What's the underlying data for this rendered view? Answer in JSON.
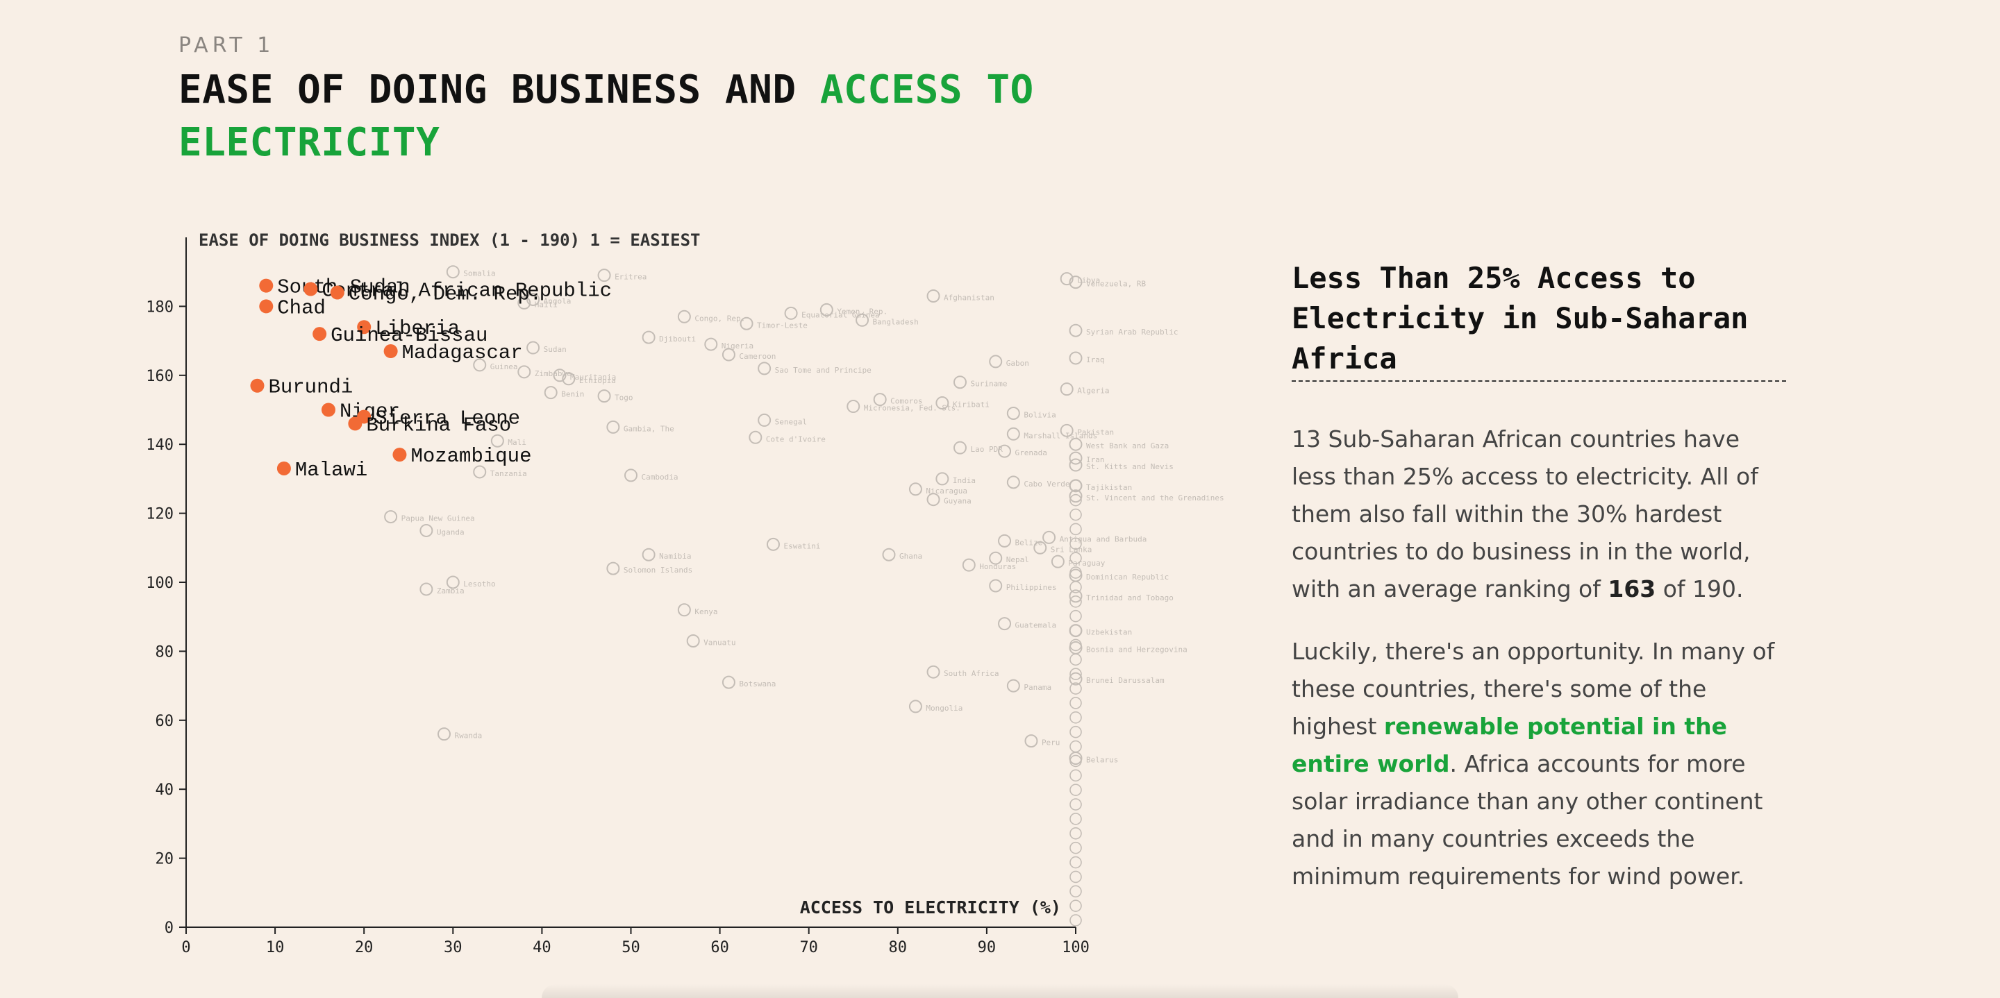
{
  "header": {
    "eyebrow": "PART 1",
    "title_part1": "EASE OF DOING BUSINESS AND ",
    "title_accent": "ACCESS TO ELECTRICITY"
  },
  "colors": {
    "background": "#f8efe6",
    "accent_green": "#18a33a",
    "highlight_orange": "#f26a35",
    "muted_point": "#c4bdb6"
  },
  "aside": {
    "title": "Less Than 25% Access to Electricity in Sub-Saharan Africa",
    "p1_before": "13 Sub-Saharan African countries have less than 25% access to electricity. All of them also fall within the 30% hardest countries to do business in in the world, with an average ranking of ",
    "p1_bold": "163",
    "p1_after": " of 190.",
    "p2_before": "Luckily, there's an opportunity. In many of these countries, there's some of the highest ",
    "p2_green": "renewable potential in the entire world",
    "p2_after": ". Africa accounts for more solar irradiance than any other continent and in many countries exceeds the minimum requirements for wind power."
  },
  "chart_data": {
    "type": "scatter",
    "ylabel": "EASE OF DOING BUSINESS INDEX (1 - 190) 1 = EASIEST",
    "xlabel": "ACCESS TO ELECTRICITY (%)",
    "xlim": [
      0,
      100
    ],
    "ylim": [
      0,
      190
    ],
    "x_ticks": [
      0,
      10,
      20,
      30,
      40,
      50,
      60,
      70,
      80,
      90,
      100
    ],
    "y_ticks": [
      0,
      20,
      40,
      60,
      80,
      100,
      120,
      140,
      160,
      180
    ],
    "highlighted": [
      {
        "name": "South Sudan",
        "x": 9,
        "y": 186
      },
      {
        "name": "Central African Republic",
        "x": 14,
        "y": 185
      },
      {
        "name": "Congo, Dem. Rep.",
        "x": 17,
        "y": 184
      },
      {
        "name": "Chad",
        "x": 9,
        "y": 180
      },
      {
        "name": "Liberia",
        "x": 20,
        "y": 174
      },
      {
        "name": "Guinea-Bissau",
        "x": 15,
        "y": 172
      },
      {
        "name": "Madagascar",
        "x": 23,
        "y": 167
      },
      {
        "name": "Burundi",
        "x": 8,
        "y": 157
      },
      {
        "name": "Niger",
        "x": 16,
        "y": 150
      },
      {
        "name": "Sierra Leone",
        "x": 20,
        "y": 148
      },
      {
        "name": "Burkina Faso",
        "x": 19,
        "y": 146
      },
      {
        "name": "Mozambique",
        "x": 24,
        "y": 137
      },
      {
        "name": "Malawi",
        "x": 11,
        "y": 133
      }
    ],
    "others": [
      {
        "name": "Somalia",
        "x": 30,
        "y": 190
      },
      {
        "name": "Eritrea",
        "x": 47,
        "y": 189
      },
      {
        "name": "Angola",
        "x": 39,
        "y": 182
      },
      {
        "name": "Haiti",
        "x": 38,
        "y": 181
      },
      {
        "name": "Congo, Rep.",
        "x": 56,
        "y": 177
      },
      {
        "name": "Timor-Leste",
        "x": 63,
        "y": 175
      },
      {
        "name": "Equatorial Guinea",
        "x": 68,
        "y": 178
      },
      {
        "name": "Yemen, Rep.",
        "x": 72,
        "y": 179
      },
      {
        "name": "Bangladesh",
        "x": 76,
        "y": 176
      },
      {
        "name": "Afghanistan",
        "x": 84,
        "y": 183
      },
      {
        "name": "Libya",
        "x": 99,
        "y": 188
      },
      {
        "name": "Venezuela, RB",
        "x": 100,
        "y": 187
      },
      {
        "name": "Syrian Arab Republic",
        "x": 100,
        "y": 173
      },
      {
        "name": "Djibouti",
        "x": 52,
        "y": 171
      },
      {
        "name": "Nigeria",
        "x": 59,
        "y": 169
      },
      {
        "name": "Cameroon",
        "x": 61,
        "y": 166
      },
      {
        "name": "Sudan",
        "x": 39,
        "y": 168
      },
      {
        "name": "Guinea",
        "x": 33,
        "y": 163
      },
      {
        "name": "Zimbabwe",
        "x": 38,
        "y": 161
      },
      {
        "name": "Mauritania",
        "x": 42,
        "y": 160
      },
      {
        "name": "Ethiopia",
        "x": 43,
        "y": 159
      },
      {
        "name": "Sao Tome and Principe",
        "x": 65,
        "y": 162
      },
      {
        "name": "Gabon",
        "x": 91,
        "y": 164
      },
      {
        "name": "Iraq",
        "x": 100,
        "y": 165
      },
      {
        "name": "Suriname",
        "x": 87,
        "y": 158
      },
      {
        "name": "Algeria",
        "x": 99,
        "y": 156
      },
      {
        "name": "Benin",
        "x": 41,
        "y": 155
      },
      {
        "name": "Togo",
        "x": 47,
        "y": 154
      },
      {
        "name": "Comoros",
        "x": 78,
        "y": 153
      },
      {
        "name": "Kiribati",
        "x": 85,
        "y": 152
      },
      {
        "name": "Micronesia, Fed. Sts.",
        "x": 75,
        "y": 151
      },
      {
        "name": "Bolivia",
        "x": 93,
        "y": 149
      },
      {
        "name": "Senegal",
        "x": 65,
        "y": 147
      },
      {
        "name": "Gambia, The",
        "x": 48,
        "y": 145
      },
      {
        "name": "Cote d'Ivoire",
        "x": 64,
        "y": 142
      },
      {
        "name": "Marshall Islands",
        "x": 93,
        "y": 143
      },
      {
        "name": "Pakistan",
        "x": 99,
        "y": 144
      },
      {
        "name": "Mali",
        "x": 35,
        "y": 141
      },
      {
        "name": "Lao PDR",
        "x": 87,
        "y": 139
      },
      {
        "name": "Grenada",
        "x": 92,
        "y": 138
      },
      {
        "name": "West Bank and Gaza",
        "x": 100,
        "y": 140
      },
      {
        "name": "Iran",
        "x": 100,
        "y": 136
      },
      {
        "name": "St. Kitts and Nevis",
        "x": 100,
        "y": 134
      },
      {
        "name": "Tanzania",
        "x": 33,
        "y": 132
      },
      {
        "name": "Cambodia",
        "x": 50,
        "y": 131
      },
      {
        "name": "India",
        "x": 85,
        "y": 130
      },
      {
        "name": "Cabo Verde",
        "x": 93,
        "y": 129
      },
      {
        "name": "Tajikistan",
        "x": 100,
        "y": 128
      },
      {
        "name": "Nicaragua",
        "x": 82,
        "y": 127
      },
      {
        "name": "Guyana",
        "x": 84,
        "y": 124
      },
      {
        "name": "St. Vincent and the Grenadines",
        "x": 100,
        "y": 125
      },
      {
        "name": "Papua New Guinea",
        "x": 23,
        "y": 119
      },
      {
        "name": "Uganda",
        "x": 27,
        "y": 115
      },
      {
        "name": "Eswatini",
        "x": 66,
        "y": 111
      },
      {
        "name": "Belize",
        "x": 92,
        "y": 112
      },
      {
        "name": "Antigua and Barbuda",
        "x": 97,
        "y": 113
      },
      {
        "name": "Sri Lanka",
        "x": 96,
        "y": 110
      },
      {
        "name": "Namibia",
        "x": 52,
        "y": 108
      },
      {
        "name": "Ghana",
        "x": 79,
        "y": 108
      },
      {
        "name": "Nepal",
        "x": 91,
        "y": 107
      },
      {
        "name": "Paraguay",
        "x": 98,
        "y": 106
      },
      {
        "name": "Honduras",
        "x": 88,
        "y": 105
      },
      {
        "name": "Solomon Islands",
        "x": 48,
        "y": 104
      },
      {
        "name": "Dominican Republic",
        "x": 100,
        "y": 102
      },
      {
        "name": "Lesotho",
        "x": 30,
        "y": 100
      },
      {
        "name": "Zambia",
        "x": 27,
        "y": 98
      },
      {
        "name": "Philippines",
        "x": 91,
        "y": 99
      },
      {
        "name": "Trinidad and Tobago",
        "x": 100,
        "y": 96
      },
      {
        "name": "Kenya",
        "x": 56,
        "y": 92
      },
      {
        "name": "Guatemala",
        "x": 92,
        "y": 88
      },
      {
        "name": "Uzbekistan",
        "x": 100,
        "y": 86
      },
      {
        "name": "Vanuatu",
        "x": 57,
        "y": 83
      },
      {
        "name": "Bosnia and Herzegovina",
        "x": 100,
        "y": 81
      },
      {
        "name": "South Africa",
        "x": 84,
        "y": 74
      },
      {
        "name": "Brunei Darussalam",
        "x": 100,
        "y": 72
      },
      {
        "name": "Botswana",
        "x": 61,
        "y": 71
      },
      {
        "name": "Panama",
        "x": 93,
        "y": 70
      },
      {
        "name": "Mongolia",
        "x": 82,
        "y": 64
      },
      {
        "name": "Rwanda",
        "x": 29,
        "y": 56
      },
      {
        "name": "Peru",
        "x": 95,
        "y": 54
      },
      {
        "name": "Belarus",
        "x": 100,
        "y": 49
      }
    ]
  }
}
